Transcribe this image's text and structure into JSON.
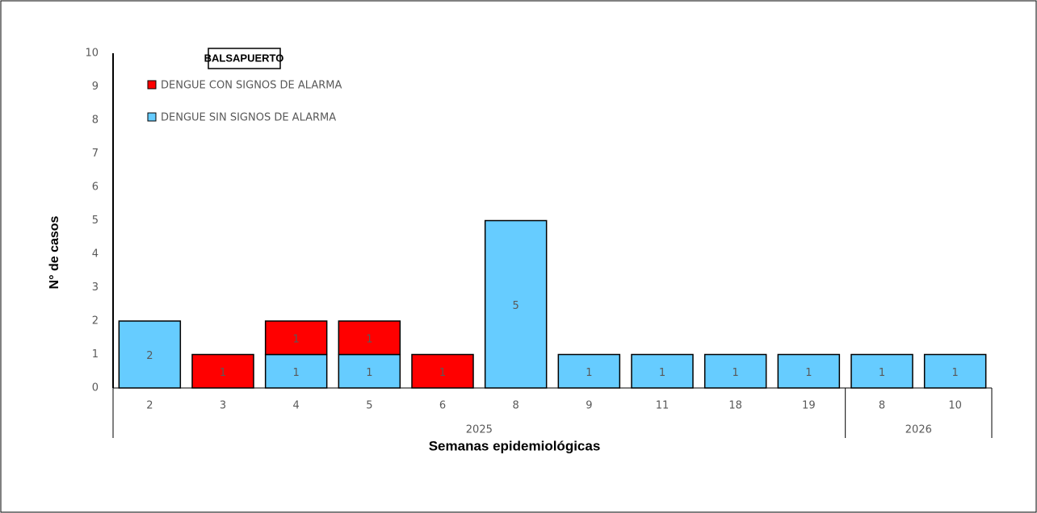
{
  "chart_data": {
    "type": "bar",
    "stacked": true,
    "title": "BALSAPUERTO",
    "x_label": "Semanas epidemiológicas",
    "y_label": "N° de casos",
    "groups": [
      {
        "label": "2025",
        "weeks": [
          "2",
          "3",
          "4",
          "5",
          "6",
          "8",
          "9",
          "11",
          "18",
          "19"
        ]
      },
      {
        "label": "2026",
        "weeks": [
          "8",
          "10"
        ]
      }
    ],
    "series": [
      {
        "name": "DENGUE CON SIGNOS DE ALARMA",
        "color": "#ff0000",
        "values": [
          null,
          1,
          1,
          1,
          1,
          null,
          null,
          null,
          null,
          null,
          null,
          null
        ]
      },
      {
        "name": "DENGUE SIN SIGNOS DE ALARMA",
        "color": "#66ccff",
        "values": [
          2,
          null,
          1,
          1,
          null,
          5,
          1,
          1,
          1,
          1,
          1,
          1
        ]
      }
    ],
    "ylim": [
      0,
      10
    ],
    "yticks": [
      0,
      1,
      2,
      3,
      4,
      5,
      6,
      7,
      8,
      9,
      10
    ],
    "grid": false
  }
}
